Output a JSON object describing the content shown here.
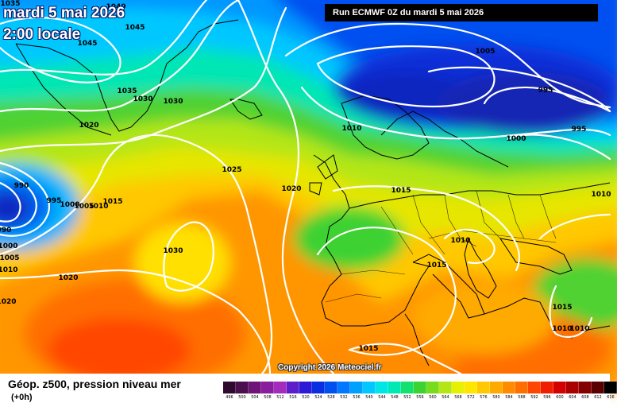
{
  "title": {
    "date": "mardi 5 mai 2026",
    "time": "2:00 locale"
  },
  "run_info": "Run ECMWF 0Z du mardi 5 mai 2026",
  "copyright": "Copyright 2026 Meteociel.fr",
  "variable_label": "Géop. z500, pression niveau mer",
  "lead_time": "(+0h)",
  "legend": {
    "unit_note": "",
    "items": [
      {
        "label": "496",
        "color": "#2d0a2e"
      },
      {
        "label": "500",
        "color": "#4b0f50"
      },
      {
        "label": "504",
        "color": "#6e1478"
      },
      {
        "label": "508",
        "color": "#8a1ca0"
      },
      {
        "label": "512",
        "color": "#a52bbf"
      },
      {
        "label": "516",
        "color": "#5b1ec8"
      },
      {
        "label": "520",
        "color": "#2b1ad6"
      },
      {
        "label": "524",
        "color": "#0a2fe0"
      },
      {
        "label": "528",
        "color": "#0050f0"
      },
      {
        "label": "532",
        "color": "#0078ff"
      },
      {
        "label": "536",
        "color": "#00a0ff"
      },
      {
        "label": "540",
        "color": "#00c8ff"
      },
      {
        "label": "544",
        "color": "#00e6e6"
      },
      {
        "label": "548",
        "color": "#00e8b4"
      },
      {
        "label": "552",
        "color": "#14e06e"
      },
      {
        "label": "556",
        "color": "#3cd232"
      },
      {
        "label": "560",
        "color": "#78dc1e"
      },
      {
        "label": "564",
        "color": "#b4e614"
      },
      {
        "label": "568",
        "color": "#e6f000"
      },
      {
        "label": "572",
        "color": "#ffe600"
      },
      {
        "label": "576",
        "color": "#ffc800"
      },
      {
        "label": "580",
        "color": "#ffaa00"
      },
      {
        "label": "584",
        "color": "#ff8c00"
      },
      {
        "label": "588",
        "color": "#ff6e00"
      },
      {
        "label": "592",
        "color": "#ff4600"
      },
      {
        "label": "596",
        "color": "#f01e00"
      },
      {
        "label": "600",
        "color": "#d20000"
      },
      {
        "label": "604",
        "color": "#aa0000"
      },
      {
        "label": "608",
        "color": "#820000"
      },
      {
        "label": "612",
        "color": "#5a0000"
      },
      {
        "label": "616",
        "color": "#000000"
      }
    ]
  },
  "isobar_labels": [
    "1035",
    "1040",
    "1045",
    "1045",
    "1035",
    "1030",
    "1030",
    "1020",
    "1025",
    "1020",
    "990",
    "995",
    "1000",
    "1005",
    "1010",
    "990",
    "1000",
    "1005",
    "1010",
    "1030",
    "1020",
    "1020",
    "1005",
    "1010",
    "1000",
    "995",
    "995",
    "1015",
    "1010",
    "1015",
    "1015",
    "1015",
    "1010",
    "1010",
    "1015",
    "1010"
  ]
}
